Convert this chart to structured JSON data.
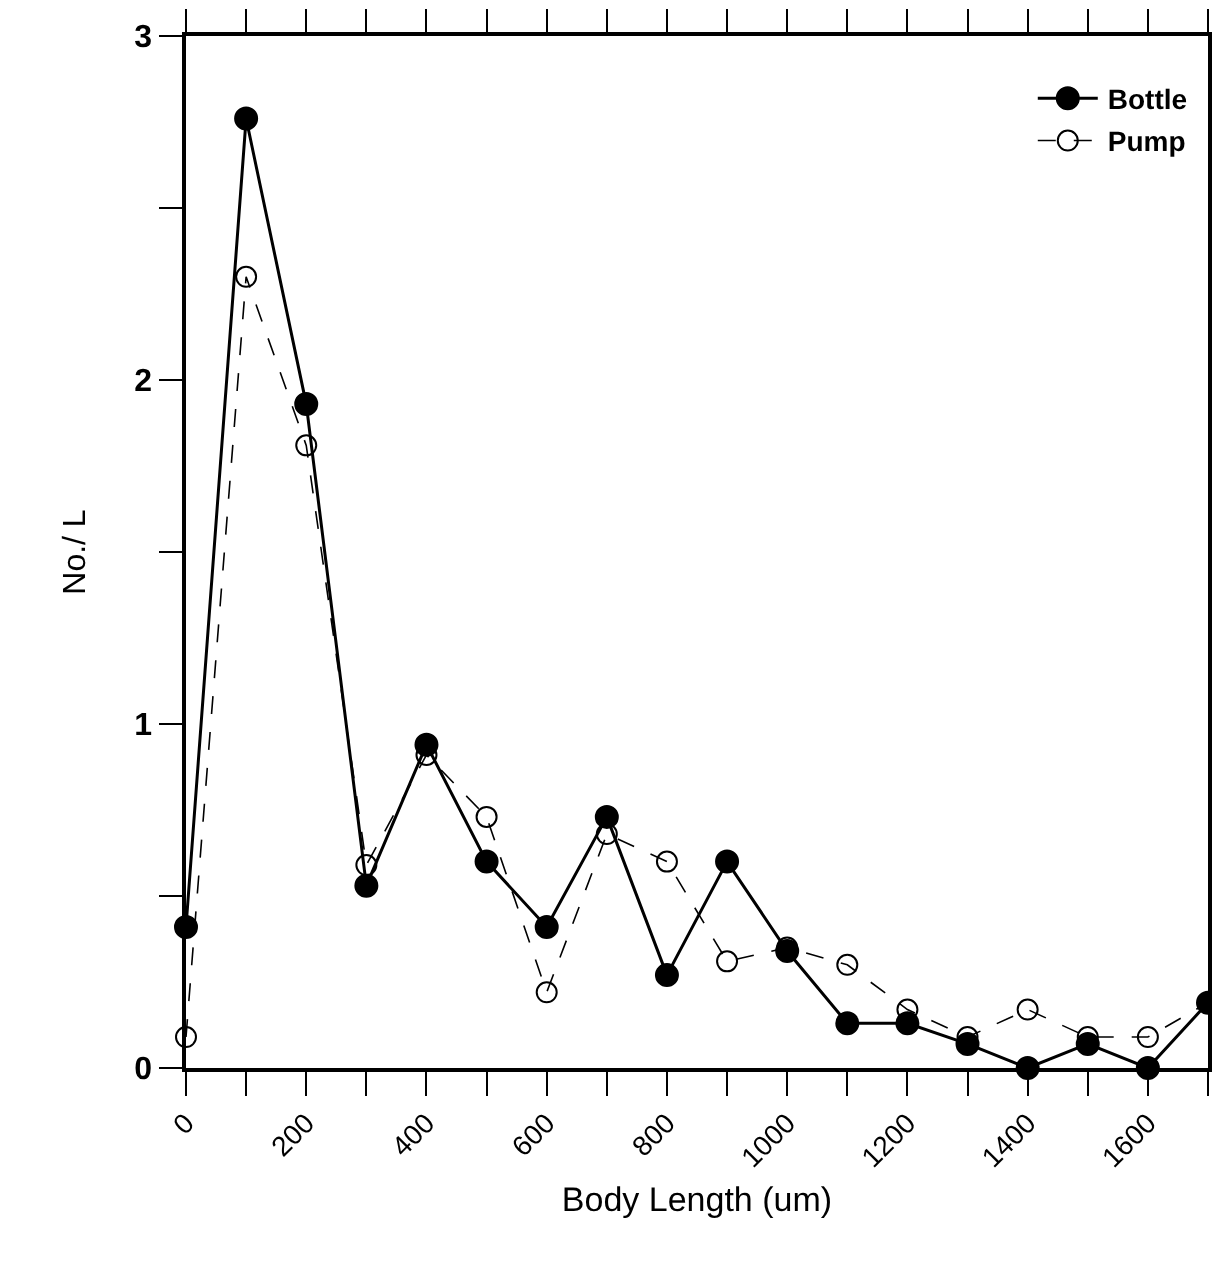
{
  "chart_data": {
    "type": "line",
    "xlabel": "Body Length (um)",
    "ylabel": "No./ L",
    "x": [
      0,
      100,
      200,
      300,
      400,
      500,
      600,
      700,
      800,
      900,
      1000,
      1100,
      1200,
      1300,
      1400,
      1500,
      1600,
      1700
    ],
    "series": [
      {
        "name": "Bottle",
        "color": "#000000",
        "values": [
          0.41,
          2.76,
          1.93,
          0.53,
          0.94,
          0.6,
          0.41,
          0.73,
          0.27,
          0.6,
          0.34,
          0.13,
          0.13,
          0.07,
          0,
          0.07,
          0,
          0.19
        ]
      },
      {
        "name": "Pump",
        "color": "#000000",
        "line_style": "dashed",
        "values": [
          0.09,
          2.3,
          1.81,
          0.59,
          0.91,
          0.73,
          0.22,
          0.68,
          0.6,
          0.31,
          0.35,
          0.3,
          0.17,
          0.09,
          0.17,
          0.09,
          0.09,
          0.19
        ]
      }
    ],
    "xlim": [
      0,
      1700
    ],
    "xticks": [
      0,
      {
        "value": 100,
        "label": null
      },
      200,
      {
        "value": 300,
        "label": null
      },
      400,
      {
        "value": 500,
        "label": null
      },
      600,
      {
        "value": 700,
        "label": null
      },
      800,
      {
        "value": 900,
        "label": null
      },
      1000,
      {
        "value": 1100,
        "label": null
      },
      1200,
      {
        "value": 1300,
        "label": null
      },
      1400,
      {
        "value": 1500,
        "label": null
      },
      1600,
      {
        "value": 1700,
        "label": null
      }
    ],
    "ylim": [
      0,
      3
    ],
    "yticks": [
      0,
      {
        "value": 0.5,
        "label": null
      },
      1,
      {
        "value": 1.5,
        "label": null
      },
      2,
      {
        "value": 2.5,
        "label": null
      },
      3
    ],
    "legend": "top right",
    "marker": "circle",
    "line_style": "solid",
    "grid": false
  }
}
